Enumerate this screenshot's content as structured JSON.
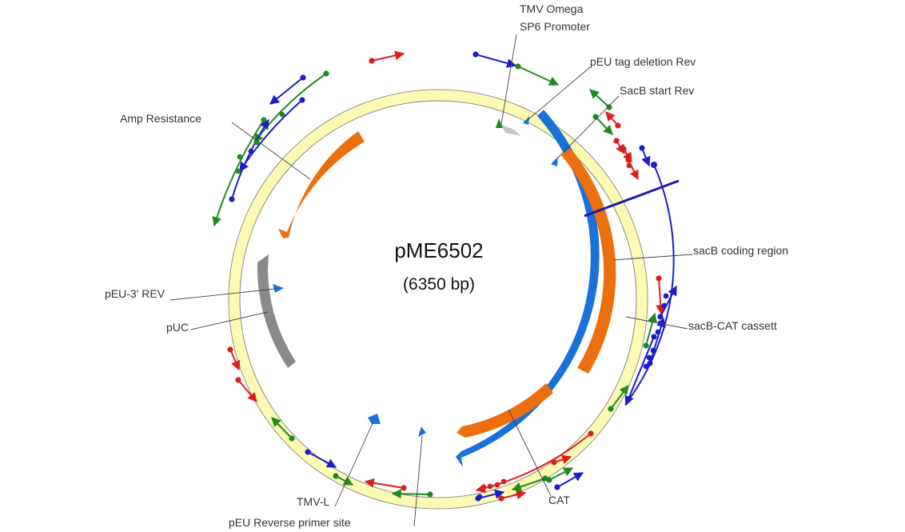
{
  "plasmid": {
    "name": "pME6502",
    "size_label": "(6350 bp)"
  },
  "features": {
    "amp_resistance": "Amp Resistance",
    "tmv_omega": "TMV Omega",
    "sp6_promoter": "SP6 Promoter",
    "peu_tag_deletion_rev": "pEU tag deletion Rev",
    "sacb_start_rev": "SacB start Rev",
    "sacb_coding_region": "sacB coding region",
    "sacb_cat_cassett": "sacB-CAT cassett",
    "cat": "CAT",
    "peu_3_rev": "pEU-3' REV",
    "puc": "pUC",
    "tmv_l": "TMV-L",
    "peu_reverse_primer_site": "pEU Reverse primer site"
  },
  "colors": {
    "backbone_fill": "#fdfbb3",
    "backbone_stroke": "#888888",
    "orange": "#ec6f0e",
    "blue_feature": "#1a72d9",
    "gray_feature": "#8a8a8a",
    "light_gray": "#c8c8c8",
    "primer_red": "#dd1c1c",
    "primer_green": "#1e8a1e",
    "primer_blue": "#1c1cc8",
    "cut_line": "#1a1aaa",
    "leader": "#444444"
  }
}
